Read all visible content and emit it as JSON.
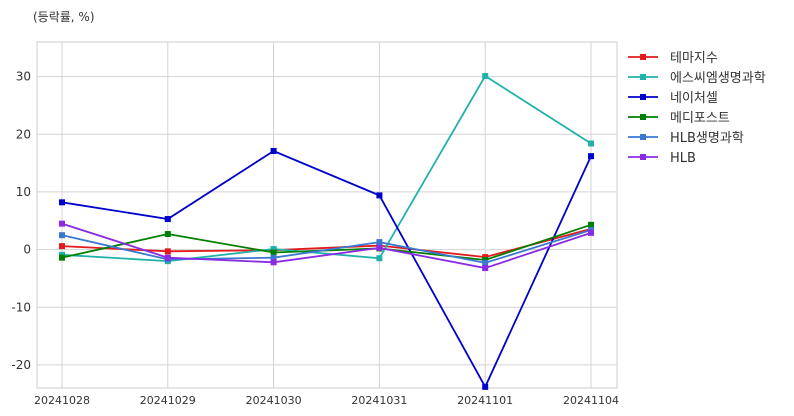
{
  "unit_label": "(등락률, %)",
  "colors": {
    "테마지수": "#e31a1c",
    "에스씨엠생명과학": "#20b2aa",
    "네이처셀": "#0000cd",
    "메디포스트": "#008000",
    "HLB생명과학": "#3a78d0",
    "HLB": "#8a2be2"
  },
  "chart_data": {
    "type": "line",
    "title": "",
    "xlabel": "",
    "ylabel": "(등락률, %)",
    "categories": [
      "20241028",
      "20241029",
      "20241030",
      "20241031",
      "20241101",
      "20241104"
    ],
    "ylim": [
      -24,
      36
    ],
    "yticks": [
      -20,
      -10,
      0,
      10,
      20,
      30
    ],
    "grid": true,
    "legend_position": "right-top",
    "marker": "square",
    "series": [
      {
        "name": "테마지수",
        "values": [
          0.6,
          -0.3,
          -0.1,
          0.7,
          -1.3,
          3.6
        ]
      },
      {
        "name": "에스씨엠생명과학",
        "values": [
          -0.9,
          -2.0,
          0.1,
          -1.5,
          30.1,
          18.4
        ]
      },
      {
        "name": "네이처셀",
        "values": [
          8.2,
          5.3,
          17.1,
          9.4,
          -23.8,
          16.2
        ]
      },
      {
        "name": "메디포스트",
        "values": [
          -1.4,
          2.7,
          -0.5,
          0.2,
          -1.8,
          4.3
        ]
      },
      {
        "name": "HLB생명과학",
        "values": [
          2.5,
          -1.7,
          -1.4,
          1.3,
          -2.3,
          3.4
        ]
      },
      {
        "name": "HLB",
        "values": [
          4.5,
          -1.4,
          -2.2,
          0.3,
          -3.2,
          2.9
        ]
      }
    ]
  }
}
